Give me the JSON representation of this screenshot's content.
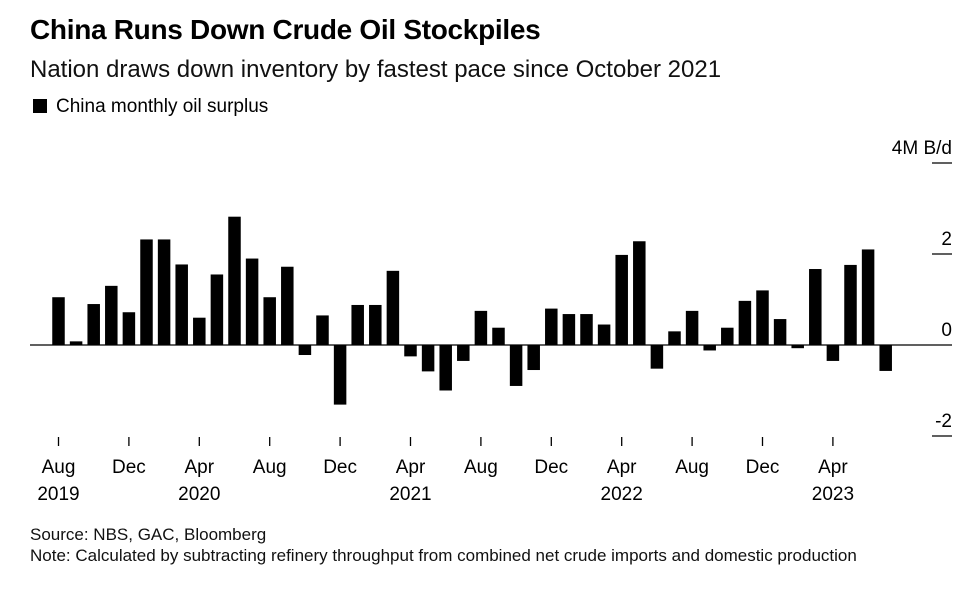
{
  "chart_data": {
    "type": "bar",
    "title": "China Runs Down Crude Oil Stockpiles",
    "subtitle": "Nation draws down inventory by fastest pace since October 2021",
    "legend": [
      "China monthly oil surplus"
    ],
    "ylabel": "4M B/d",
    "unit": "M B/d",
    "ylim": [
      -2,
      4
    ],
    "yticks": [
      4,
      2,
      0,
      -2
    ],
    "ytick_labels": [
      "4M B/d",
      "2",
      "0",
      "-2"
    ],
    "series": [
      {
        "name": "China monthly oil surplus",
        "start": "Aug 2019",
        "values": [
          1.05,
          0.08,
          0.9,
          1.3,
          0.72,
          2.32,
          2.32,
          1.77,
          0.6,
          1.55,
          2.82,
          1.9,
          1.05,
          1.72,
          -0.22,
          0.65,
          -1.31,
          0.88,
          0.88,
          1.63,
          -0.25,
          -0.58,
          -1.0,
          -0.35,
          0.75,
          0.38,
          -0.9,
          -0.55,
          0.8,
          0.68,
          0.68,
          0.45,
          1.98,
          2.28,
          -0.52,
          0.3,
          0.75,
          -0.12,
          0.38,
          0.97,
          1.2,
          0.57,
          -0.07,
          1.67,
          -0.35,
          1.76,
          2.1,
          -0.57
        ]
      }
    ],
    "x_ticks": [
      {
        "month": "Aug",
        "year": "2019",
        "index": 0
      },
      {
        "month": "Dec",
        "year": "",
        "index": 4
      },
      {
        "month": "Apr",
        "year": "2020",
        "index": 8
      },
      {
        "month": "Aug",
        "year": "",
        "index": 12
      },
      {
        "month": "Dec",
        "year": "",
        "index": 16
      },
      {
        "month": "Apr",
        "year": "2021",
        "index": 20
      },
      {
        "month": "Aug",
        "year": "",
        "index": 24
      },
      {
        "month": "Dec",
        "year": "",
        "index": 28
      },
      {
        "month": "Apr",
        "year": "2022",
        "index": 32
      },
      {
        "month": "Aug",
        "year": "",
        "index": 36
      },
      {
        "month": "Dec",
        "year": "",
        "index": 40
      },
      {
        "month": "Apr",
        "year": "2023",
        "index": 44
      }
    ]
  },
  "footer": {
    "source": "Source: NBS, GAC, Bloomberg",
    "note": "Note: Calculated by subtracting refinery throughput from combined net crude imports and domestic production"
  }
}
